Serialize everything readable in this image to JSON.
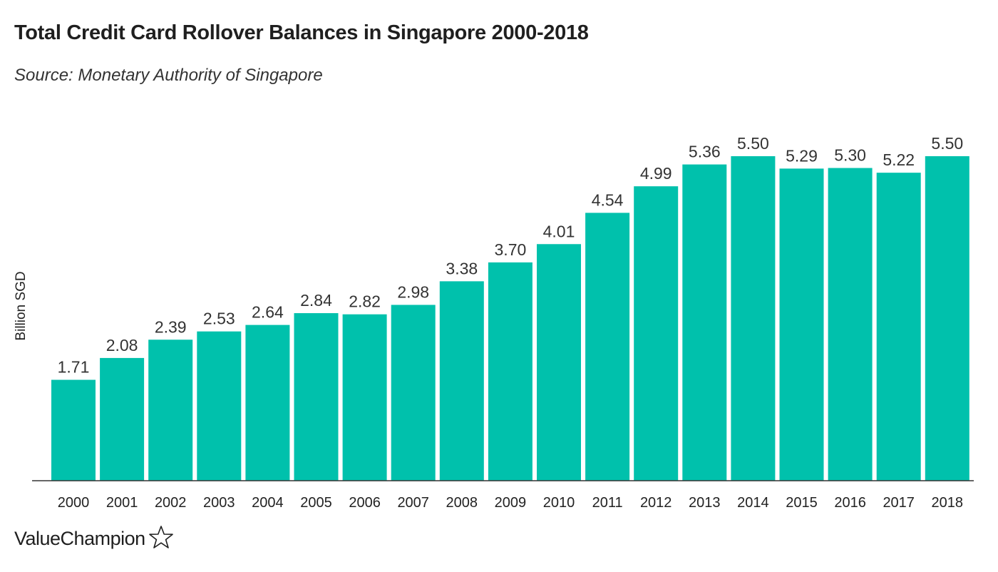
{
  "title": "Total Credit Card Rollover Balances in Singapore 2000-2018",
  "subtitle": "Source: Monetary Authority of Singapore",
  "brand": {
    "name": "ValueChampion",
    "icon": "star-outline-icon"
  },
  "colors": {
    "bar": "#00C1AC",
    "axis": "#333333",
    "text": "#222222"
  },
  "chart_data": {
    "type": "bar",
    "categories": [
      "2000",
      "2001",
      "2002",
      "2003",
      "2004",
      "2005",
      "2006",
      "2007",
      "2008",
      "2009",
      "2010",
      "2011",
      "2012",
      "2013",
      "2014",
      "2015",
      "2016",
      "2017",
      "2018"
    ],
    "values": [
      1.71,
      2.08,
      2.39,
      2.53,
      2.64,
      2.84,
      2.82,
      2.98,
      3.38,
      3.7,
      4.01,
      4.54,
      4.99,
      5.36,
      5.5,
      5.29,
      5.3,
      5.22,
      5.5
    ],
    "data_labels": [
      "1.71",
      "2.08",
      "2.39",
      "2.53",
      "2.64",
      "2.84",
      "2.82",
      "2.98",
      "3.38",
      "3.70",
      "4.01",
      "4.54",
      "4.99",
      "5.36",
      "5.50",
      "5.29",
      "5.30",
      "5.22",
      "5.50"
    ],
    "title": "Total Credit Card Rollover Balances in Singapore 2000-2018",
    "xlabel": "",
    "ylabel": "Billion SGD",
    "ylim": [
      0,
      5.5
    ],
    "grid": false,
    "legend": "none"
  }
}
